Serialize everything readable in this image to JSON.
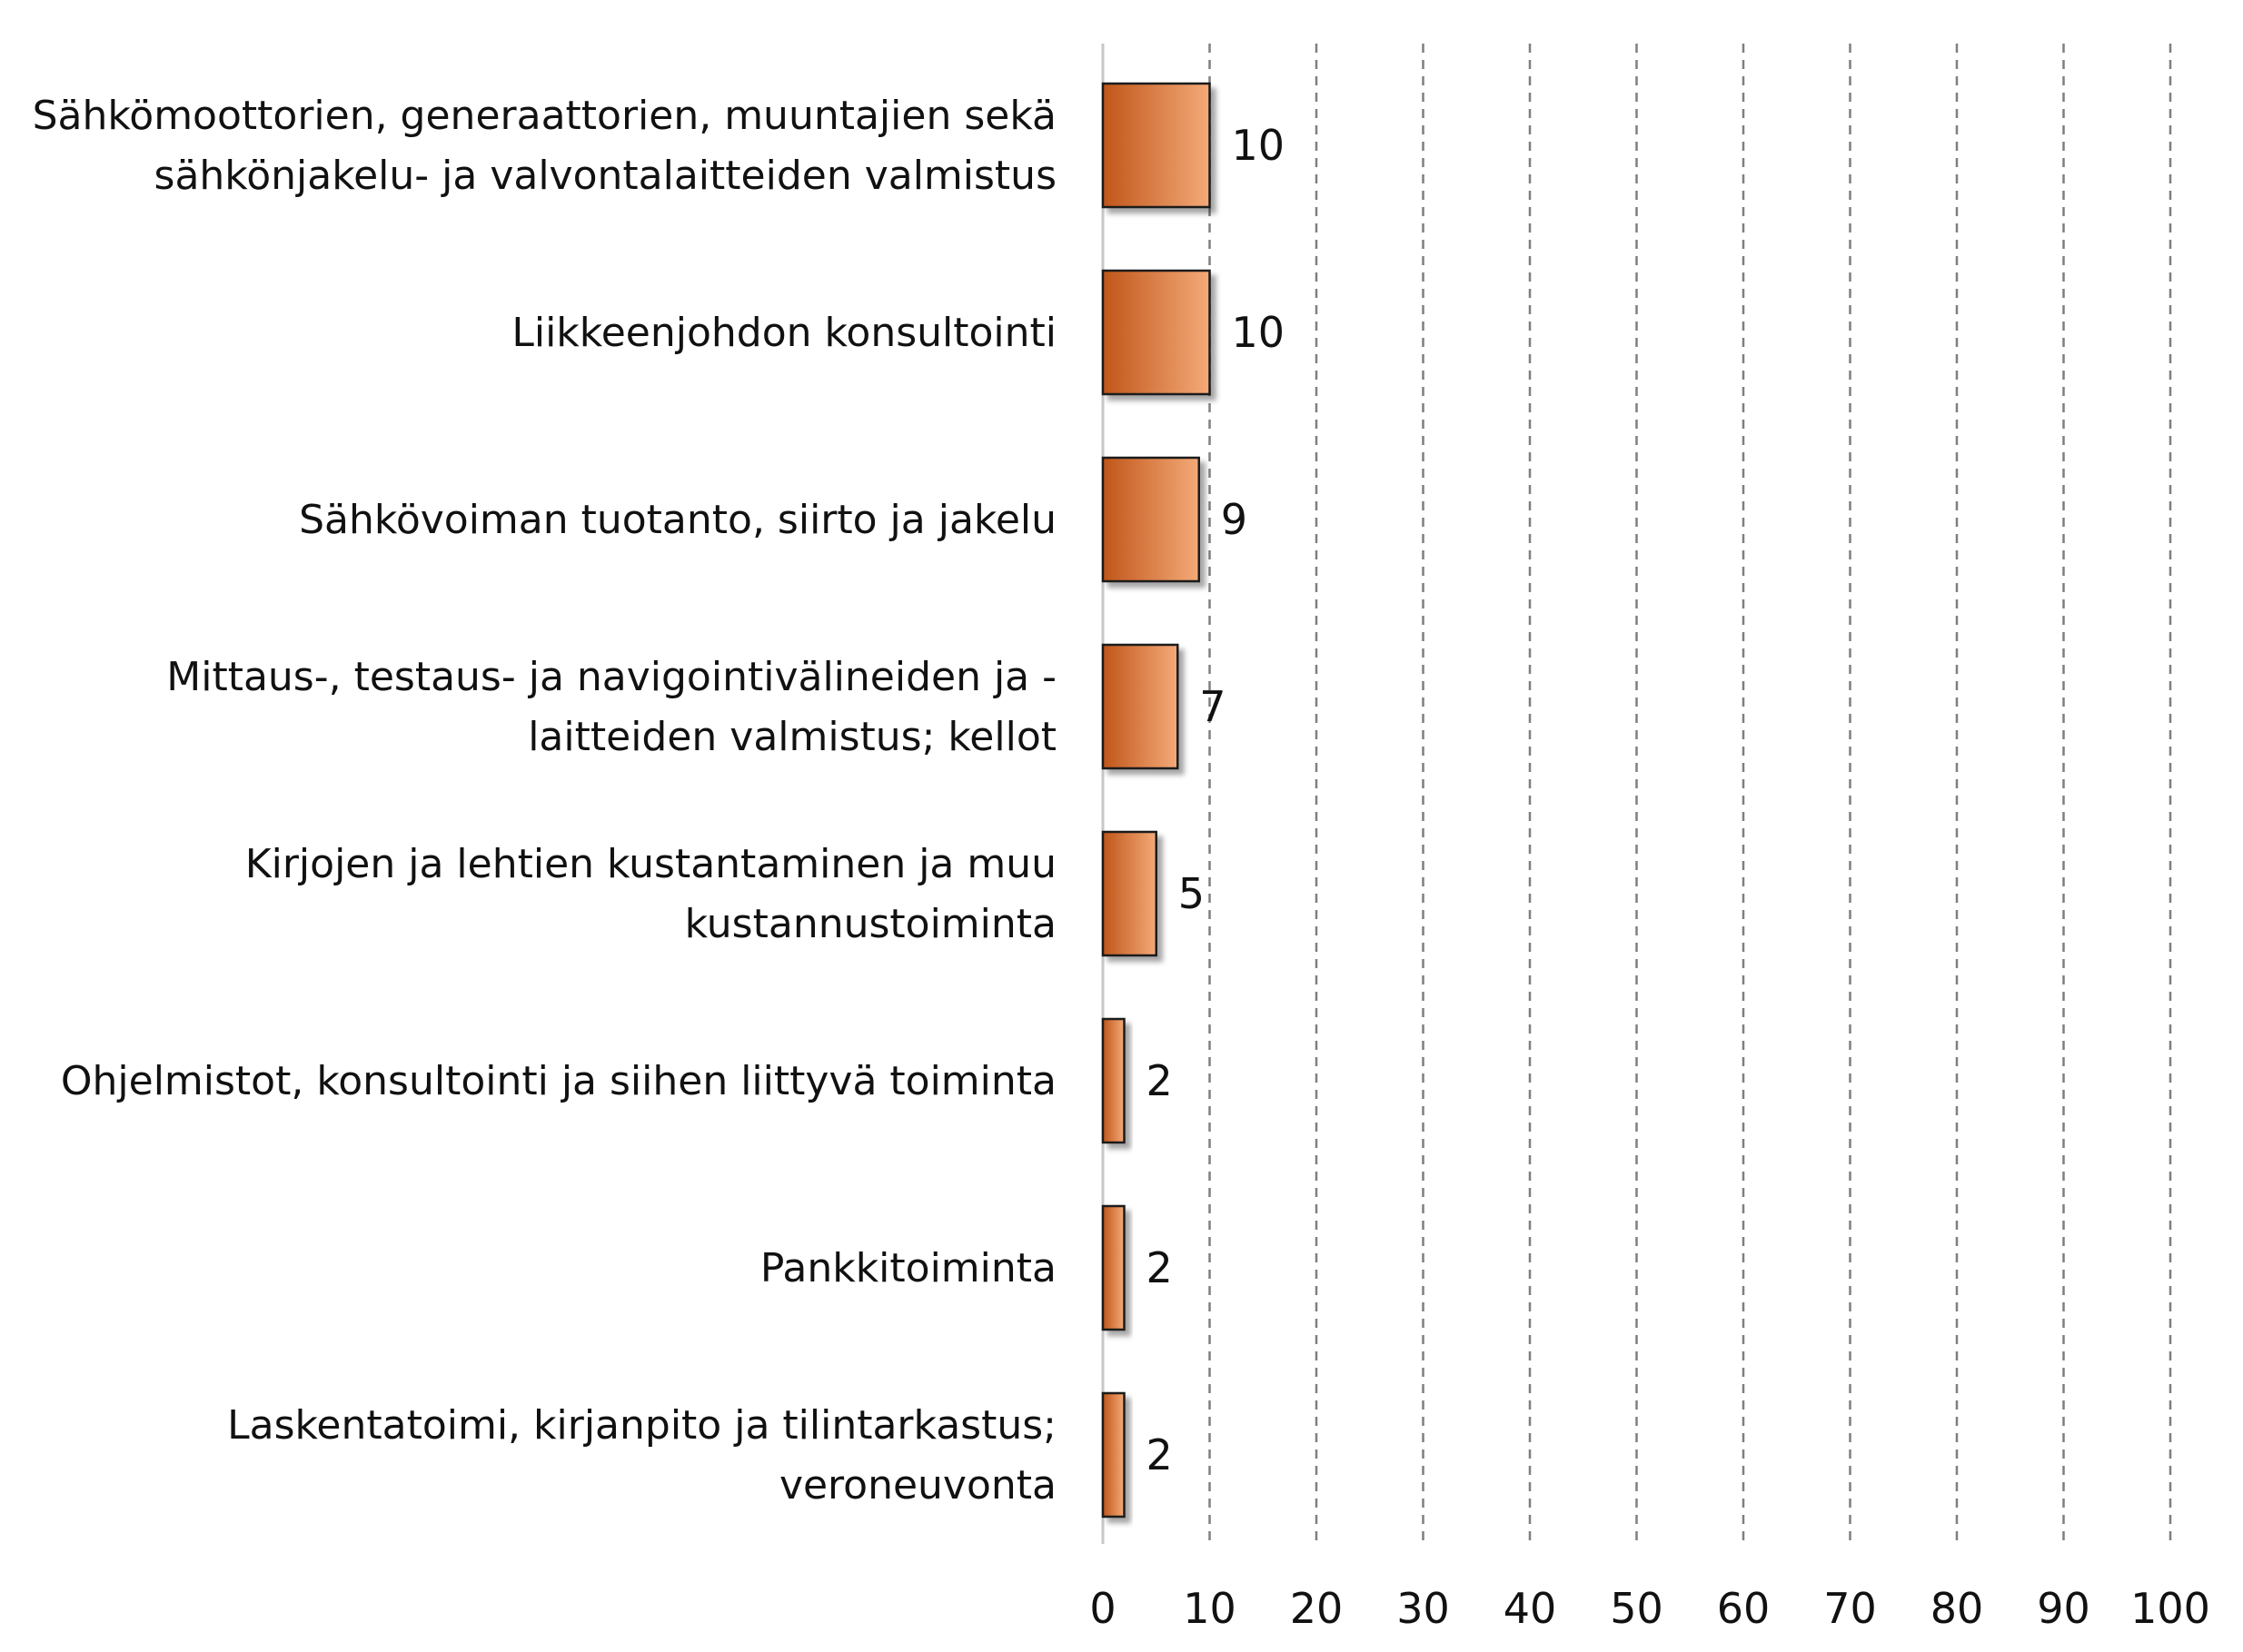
{
  "chart_data": {
    "type": "bar",
    "orientation": "horizontal",
    "title": "",
    "xlabel": "",
    "ylabel": "",
    "categories": [
      [
        "Sähkömoottorien, generaattorien, muuntajien sekä",
        "sähkönjakelu- ja valvontalaitteiden valmistus"
      ],
      [
        "Liikkeenjohdon konsultointi"
      ],
      [
        "Sähkövoiman tuotanto, siirto ja jakelu"
      ],
      [
        "Mittaus-, testaus- ja navigointivälineiden ja -",
        "laitteiden valmistus; kellot"
      ],
      [
        "Kirjojen ja lehtien kustantaminen ja muu",
        "kustannustoiminta"
      ],
      [
        "Ohjelmistot, konsultointi ja siihen liittyvä toiminta"
      ],
      [
        "Pankkitoiminta"
      ],
      [
        "Laskentatoimi, kirjanpito ja tilintarkastus;",
        "veroneuvonta"
      ]
    ],
    "values": [
      10,
      10,
      9,
      7,
      5,
      2,
      2,
      2
    ],
    "data_labels": [
      "10",
      "10",
      "9",
      "7",
      "5",
      "2",
      "2",
      "2"
    ],
    "xlim": [
      0,
      100
    ],
    "xticks": [
      "0",
      "10",
      "20",
      "30",
      "40",
      "50",
      "60",
      "70",
      "80",
      "90",
      "100"
    ],
    "grid": "vertical-dashed",
    "colors": {
      "bar_dark": "#c0561a",
      "bar_light": "#f4aa78",
      "bar_stroke": "#1a1a1a",
      "grid": "#7f7f7f",
      "axis": "#c8c8c8",
      "text": "#111111"
    }
  }
}
